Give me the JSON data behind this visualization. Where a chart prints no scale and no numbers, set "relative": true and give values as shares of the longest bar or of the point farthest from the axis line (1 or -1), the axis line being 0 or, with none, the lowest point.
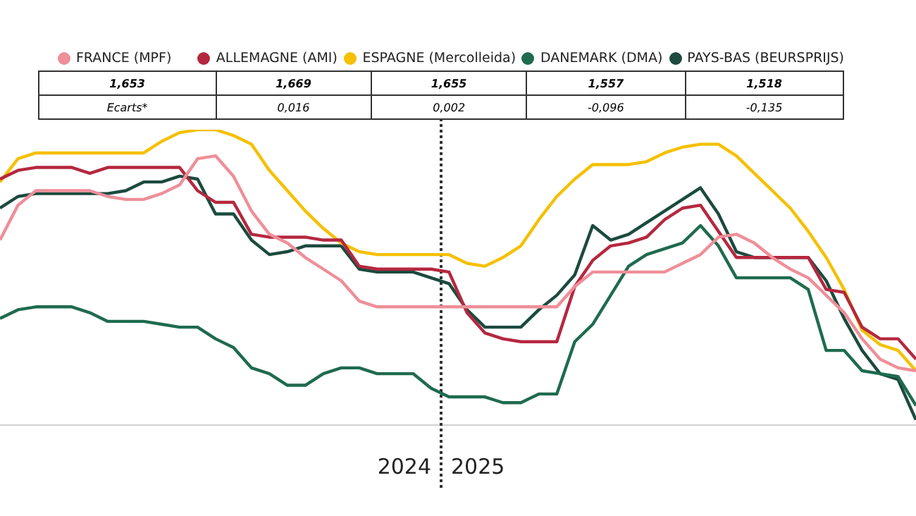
{
  "chart_data": {
    "type": "line",
    "relative": true,
    "legend": "top",
    "categories": [
      null,
      null,
      null,
      null,
      null,
      null,
      null,
      null,
      null,
      null,
      null,
      null,
      null,
      null,
      null,
      null,
      null,
      null,
      null,
      null,
      null,
      null,
      null,
      null,
      null,
      null,
      null,
      null,
      null,
      null,
      null,
      null,
      null,
      null,
      null,
      null,
      null,
      null,
      null,
      null,
      null,
      null,
      null,
      null,
      null,
      null,
      null,
      null,
      null,
      null,
      null,
      null
    ],
    "series": [
      {
        "name": "FRANCE (MPF)",
        "color": "#ee8f99",
        "values": [
          0.62,
          0.74,
          0.79,
          0.79,
          0.79,
          0.79,
          0.77,
          0.76,
          0.76,
          0.78,
          0.81,
          0.9,
          0.91,
          0.84,
          0.72,
          0.64,
          0.61,
          0.56,
          0.52,
          0.48,
          0.41,
          0.39,
          0.39,
          0.39,
          0.39,
          0.39,
          0.39,
          0.39,
          0.39,
          0.39,
          0.39,
          0.39,
          0.46,
          0.51,
          0.51,
          0.51,
          0.51,
          0.51,
          0.54,
          0.57,
          0.63,
          0.64,
          0.61,
          0.56,
          0.52,
          0.49,
          0.43,
          0.37,
          0.28,
          0.21,
          0.18,
          0.17
        ]
      },
      {
        "name": "ALLEMAGNE (AMI)",
        "color": "#b5273f",
        "values": [
          0.83,
          0.86,
          0.87,
          0.87,
          0.87,
          0.85,
          0.87,
          0.87,
          0.87,
          0.87,
          0.87,
          0.79,
          0.75,
          0.75,
          0.64,
          0.63,
          0.63,
          0.63,
          0.62,
          0.62,
          0.53,
          0.52,
          0.52,
          0.52,
          0.52,
          0.51,
          0.37,
          0.3,
          0.28,
          0.27,
          0.27,
          0.27,
          0.46,
          0.55,
          0.6,
          0.61,
          0.63,
          0.69,
          0.73,
          0.74,
          0.65,
          0.56,
          0.56,
          0.56,
          0.56,
          0.56,
          0.45,
          0.44,
          0.32,
          0.28,
          0.28,
          0.21
        ]
      },
      {
        "name": "ESPAGNE (Mercolleida)",
        "color": "#f5c000",
        "values": [
          0.82,
          0.9,
          0.92,
          0.92,
          0.92,
          0.92,
          0.92,
          0.92,
          0.92,
          0.96,
          0.99,
          1,
          1,
          0.98,
          0.95,
          0.86,
          0.79,
          0.72,
          0.66,
          0.61,
          0.58,
          0.57,
          0.57,
          0.57,
          0.57,
          0.57,
          0.54,
          0.53,
          0.56,
          0.6,
          0.69,
          0.77,
          0.83,
          0.88,
          0.88,
          0.88,
          0.89,
          0.92,
          0.94,
          0.95,
          0.95,
          0.91,
          0.85,
          0.79,
          0.73,
          0.65,
          0.56,
          0.45,
          0.31,
          0.26,
          0.24,
          0.17
        ]
      },
      {
        "name": "DANEMARK (DMA)",
        "color": "#1f6b4f",
        "values": [
          0.35,
          0.38,
          0.39,
          0.39,
          0.39,
          0.37,
          0.34,
          0.34,
          0.34,
          0.33,
          0.32,
          0.32,
          0.28,
          0.25,
          0.18,
          0.16,
          0.12,
          0.12,
          0.16,
          0.18,
          0.18,
          0.16,
          0.16,
          0.16,
          0.11,
          0.08,
          0.08,
          0.08,
          0.06,
          0.06,
          0.09,
          0.09,
          0.27,
          0.33,
          0.43,
          0.53,
          0.57,
          0.59,
          0.61,
          0.67,
          0.6,
          0.49,
          0.49,
          0.49,
          0.49,
          0.45,
          0.24,
          0.24,
          0.17,
          0.16,
          0.15,
          0.05
        ]
      },
      {
        "name": "PAYS-BAS (BEURSPRIJS)",
        "color": "#1c4a3e",
        "values": [
          0.73,
          0.77,
          0.78,
          0.78,
          0.78,
          0.78,
          0.78,
          0.79,
          0.82,
          0.82,
          0.84,
          0.83,
          0.71,
          0.71,
          0.62,
          0.57,
          0.58,
          0.6,
          0.6,
          0.6,
          0.52,
          0.51,
          0.51,
          0.51,
          0.49,
          0.47,
          0.38,
          0.32,
          0.32,
          0.32,
          0.38,
          0.43,
          0.5,
          0.67,
          0.62,
          0.64,
          0.68,
          0.72,
          0.76,
          0.8,
          0.71,
          0.58,
          0.56,
          0.56,
          0.56,
          0.56,
          0.48,
          0.35,
          0.24,
          0.16,
          0.14,
          0
        ]
      }
    ],
    "annotations": [
      "1,653",
      "1,669",
      "1,655",
      "1,557",
      "1,518",
      "Ecarts*",
      "0,016",
      "0,002",
      "-0,096",
      "-0,135",
      "2024",
      "2025"
    ]
  }
}
